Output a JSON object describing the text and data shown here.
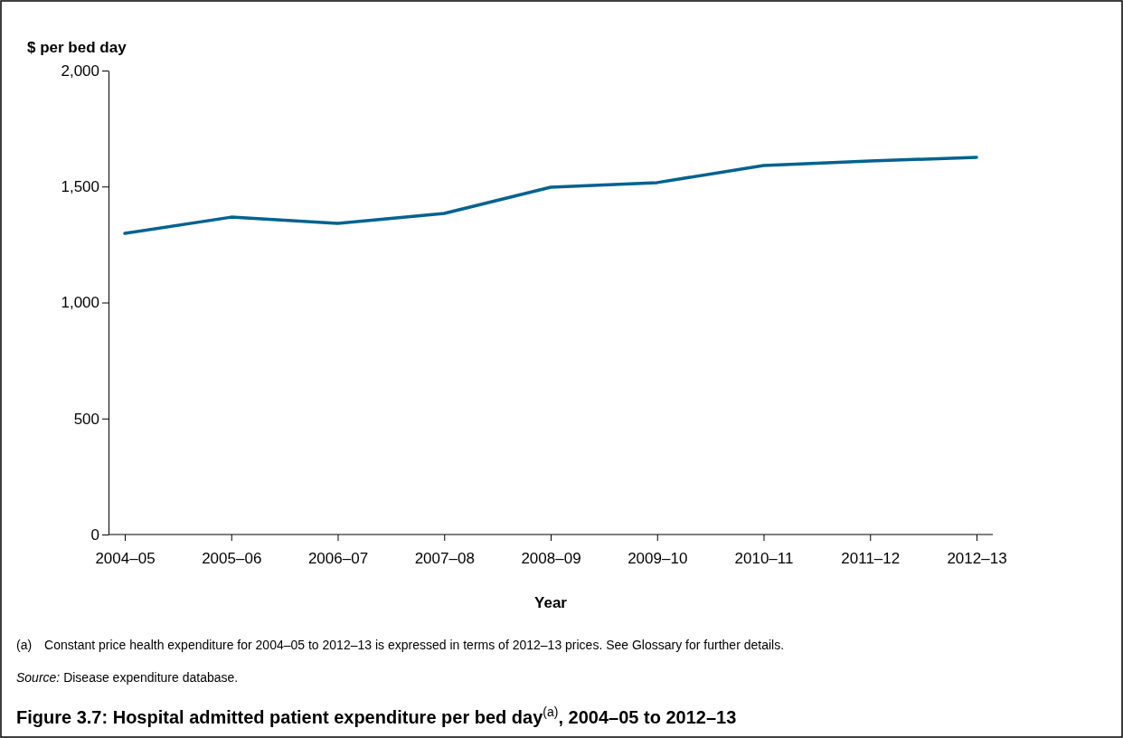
{
  "chart_data": {
    "type": "line",
    "title": "Figure 3.7: Hospital admitted patient expenditure per bed day$^{(a)}$, 2004–05 to 2012–13",
    "xlabel": "Year",
    "ylabel": "$ per bed day",
    "categories": [
      "2004–05",
      "2005–06",
      "2006–07",
      "2007–08",
      "2008–09",
      "2009–10",
      "2010–11",
      "2011–12",
      "2012–13"
    ],
    "series": [
      {
        "color": "#00628f",
        "values": [
          1298,
          1368,
          1341,
          1384,
          1497,
          1517,
          1591,
          1610,
          1626
        ]
      }
    ],
    "ylim": [
      0,
      2000
    ],
    "yticks": [
      {
        "value": 0,
        "label": "0"
      },
      {
        "value": 500,
        "label": "500"
      },
      {
        "value": 1000,
        "label": "1,000"
      },
      {
        "value": 1500,
        "label": "1,500"
      },
      {
        "value": 2000,
        "label": "2,000"
      }
    ],
    "grid": false,
    "marker": "none",
    "line_style": "solid",
    "annotations": [
      "(a) Constant price health expenditure for 2004–05 to 2012–13 is expressed in terms of 2012–13 prices. See Glossary for further details.",
      "Source: Disease expenditure database."
    ]
  }
}
